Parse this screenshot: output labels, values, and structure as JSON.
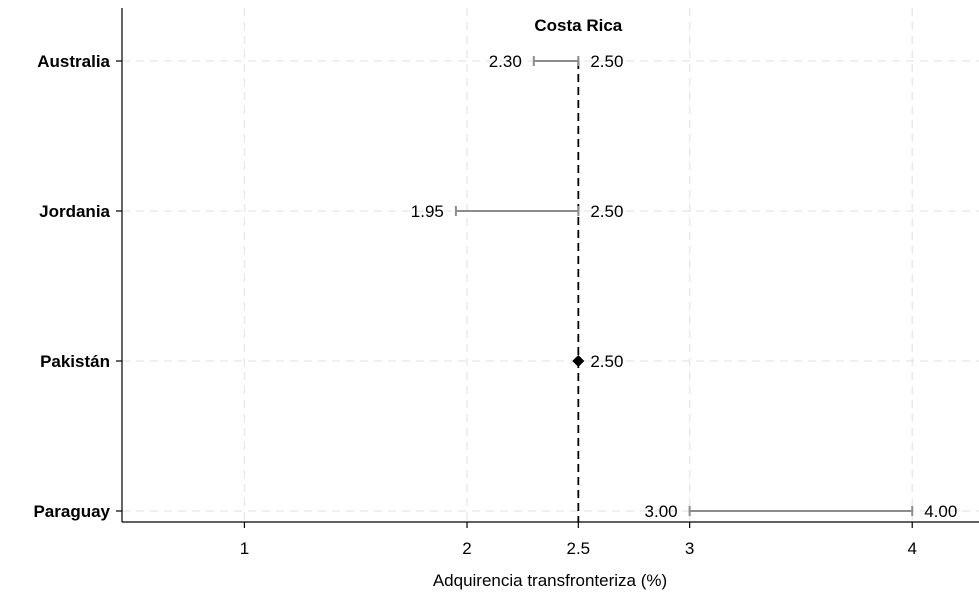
{
  "chart_data": {
    "type": "range-dot",
    "xlabel": "Adquirencia transfronteriza (%)",
    "xlim": [
      0.45,
      4.3
    ],
    "x_ticks": [
      1,
      2,
      2.5,
      3,
      4
    ],
    "x_tick_labels": [
      "1",
      "2",
      "2.5",
      "3",
      "4"
    ],
    "grid": true,
    "reference": {
      "label": "Costa Rica",
      "value": 2.5,
      "style": "dashed"
    },
    "rows": [
      {
        "country": "Australia",
        "low": 2.3,
        "high": 2.5,
        "low_label": "2.30",
        "high_label": "2.50"
      },
      {
        "country": "Jordania",
        "low": 1.95,
        "high": 2.5,
        "low_label": "1.95",
        "high_label": "2.50"
      },
      {
        "country": "Pakistán",
        "low": 2.5,
        "high": 2.5,
        "low_label": "",
        "high_label": "2.50",
        "marker": "diamond"
      },
      {
        "country": "Paraguay",
        "low": 3.0,
        "high": 4.0,
        "low_label": "3.00",
        "high_label": "4.00"
      }
    ],
    "colors": {
      "range_line": "#8c8c8c",
      "reference": "#000000",
      "grid": "#e6e6e6"
    }
  }
}
